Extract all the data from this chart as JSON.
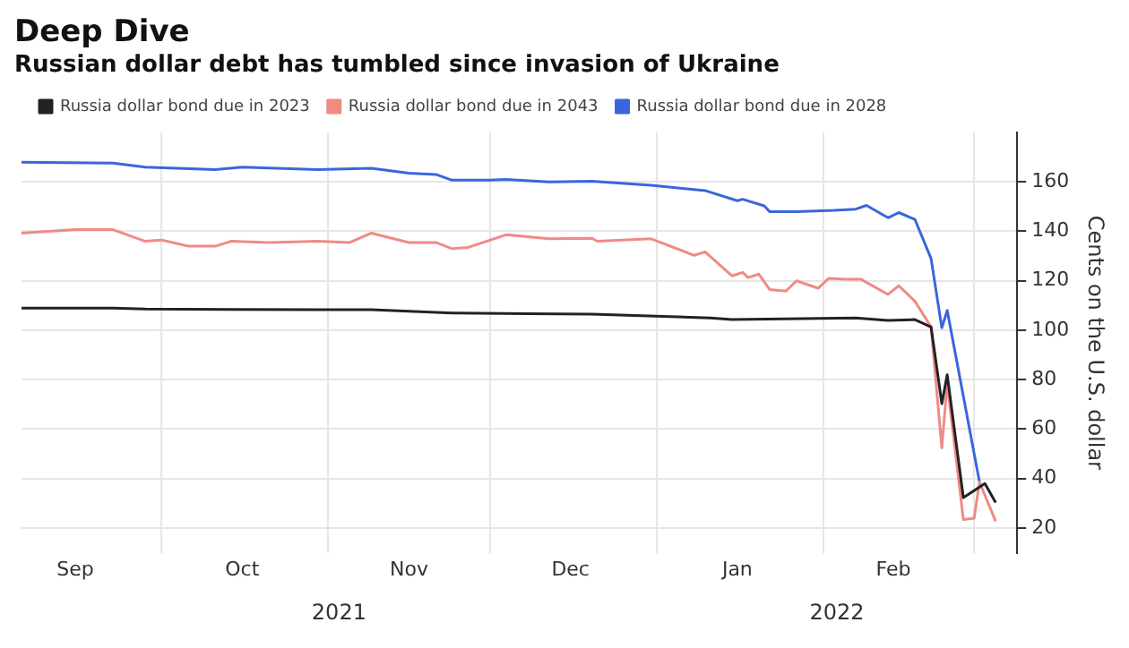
{
  "chart_data": {
    "type": "line",
    "title": "Deep Dive",
    "subtitle": "Russian dollar debt has tumbled since invasion of Ukraine",
    "ylabel": "Cents on the U.S. dollar",
    "xlim": [
      "2021-09-05",
      "2022-03-09"
    ],
    "xticks": [
      {
        "value": "2021-09-15",
        "label": "Sep"
      },
      {
        "value": "2021-10-01",
        "label": null
      },
      {
        "value": "2021-10-16",
        "label": "Oct"
      },
      {
        "value": "2021-11-01",
        "label": null
      },
      {
        "value": "2021-11-16",
        "label": "Nov"
      },
      {
        "value": "2021-12-01",
        "label": null
      },
      {
        "value": "2021-12-16",
        "label": "Dec"
      },
      {
        "value": "2022-01-01",
        "label": null
      },
      {
        "value": "2022-01-16",
        "label": "Jan"
      },
      {
        "value": "2022-02-01",
        "label": null
      },
      {
        "value": "2022-02-14",
        "label": "Feb"
      },
      {
        "value": "2022-03-01",
        "label": null
      }
    ],
    "ylim": [
      10,
      180
    ],
    "yticks": [
      20,
      40,
      60,
      80,
      100,
      120,
      140,
      160
    ],
    "grid": true,
    "legend": "top left",
    "annotations": [
      "2021",
      "2022"
    ],
    "series": [
      {
        "name": "Russia dollar bond due in 2023",
        "color": "#222222",
        "x": [
          "2021-09-05",
          "2021-09-22",
          "2021-09-28",
          "2021-10-30",
          "2021-11-09",
          "2021-11-24",
          "2021-12-08",
          "2021-12-20",
          "2022-01-11",
          "2022-01-15",
          "2022-02-07",
          "2022-02-13",
          "2022-02-18",
          "2022-02-21",
          "2022-02-23",
          "2022-02-24",
          "2022-02-27",
          "2022-03-03",
          "2022-03-05"
        ],
        "values": [
          109,
          109,
          108.6,
          108.3,
          108.3,
          107,
          106.7,
          106.5,
          105,
          104.3,
          105,
          104,
          104.3,
          101.3,
          70.3,
          82,
          32.3,
          38,
          30.3
        ]
      },
      {
        "name": "Russia dollar bond due in 2043",
        "color": "#f08a85",
        "x": [
          "2021-09-05",
          "2021-09-15",
          "2021-09-22",
          "2021-09-28",
          "2021-10-01",
          "2021-10-06",
          "2021-10-11",
          "2021-10-14",
          "2021-10-21",
          "2021-10-30",
          "2021-11-05",
          "2021-11-09",
          "2021-11-16",
          "2021-11-21",
          "2021-11-24",
          "2021-11-27",
          "2021-12-04",
          "2021-12-12",
          "2021-12-20",
          "2021-12-21",
          "2021-12-31",
          "2022-01-08",
          "2022-01-10",
          "2022-01-15",
          "2022-01-17",
          "2022-01-18",
          "2022-01-20",
          "2022-01-22",
          "2022-01-25",
          "2022-01-27",
          "2022-01-31",
          "2022-02-02",
          "2022-02-05",
          "2022-02-08",
          "2022-02-13",
          "2022-02-15",
          "2022-02-18",
          "2022-02-21",
          "2022-02-23",
          "2022-02-24",
          "2022-02-27",
          "2022-03-01",
          "2022-03-02",
          "2022-03-05"
        ],
        "values": [
          139.3,
          140.7,
          140.7,
          136,
          136.5,
          134,
          134,
          136,
          135.5,
          136,
          135.5,
          139.3,
          135.5,
          135.5,
          133,
          133.5,
          138.6,
          137,
          137.2,
          136,
          137,
          130.3,
          131.7,
          122,
          123.4,
          121.3,
          122.7,
          116.5,
          115.8,
          120,
          117,
          121,
          120.6,
          120.6,
          114.5,
          118,
          111.7,
          101.3,
          52.4,
          78.6,
          23.4,
          24,
          38.6,
          22.7
        ]
      },
      {
        "name": "Russia dollar bond due in 2028",
        "color": "#3a66dd",
        "x": [
          "2021-09-05",
          "2021-09-22",
          "2021-09-28",
          "2021-10-11",
          "2021-10-16",
          "2021-10-30",
          "2021-11-09",
          "2021-11-16",
          "2021-11-21",
          "2021-11-24",
          "2021-12-01",
          "2021-12-04",
          "2021-12-12",
          "2021-12-20",
          "2021-12-31",
          "2022-01-10",
          "2022-01-16",
          "2022-01-17",
          "2022-01-21",
          "2022-01-22",
          "2022-01-27",
          "2022-02-03",
          "2022-02-07",
          "2022-02-09",
          "2022-02-13",
          "2022-02-15",
          "2022-02-18",
          "2022-02-21",
          "2022-02-23",
          "2022-02-24",
          "2022-03-02"
        ],
        "values": [
          168,
          167.6,
          166,
          165,
          166,
          165,
          165.5,
          163.5,
          163,
          160.7,
          160.7,
          161,
          160,
          160.3,
          158.6,
          156.5,
          152.4,
          153,
          150.3,
          148,
          148,
          148.5,
          149,
          150.5,
          145.5,
          147.6,
          144.8,
          129,
          101,
          108,
          38.6
        ]
      }
    ]
  }
}
